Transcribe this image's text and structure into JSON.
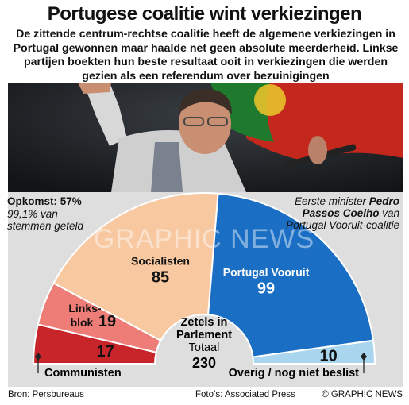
{
  "header": {
    "title": "Portugese coalitie wint verkiezingen",
    "intro": "De zittende centrum-rechtse coalitie heeft de algemene verkiezingen in Portugal gewonnen maar haalde net geen absolute meerderheid. Linkse partijen boekten hun beste resultaat ooit in verkiezingen die werden gezien als een referendum over bezuinigingen"
  },
  "watermark": "GRAPHIC NEWS",
  "turnout": {
    "label": "Opkomst:",
    "value": "57%",
    "note": "99,1% van stemmen geteld"
  },
  "pm_caption": {
    "prefix": "Eerste minister",
    "name": "Pedro Passos Coelho",
    "suffix": "van Portugal Vooruit-coalitie"
  },
  "chart_data": {
    "type": "pie",
    "variant": "parliament-semicircle",
    "title_line1": "Zetels in",
    "title_line2": "Parlement",
    "total_label": "Totaal",
    "total": 230,
    "segments": [
      {
        "name": "Communisten",
        "value": 17,
        "color": "#c8252b"
      },
      {
        "name": "Links-blok",
        "name_line1": "Links-",
        "name_line2": "blok",
        "value": 19,
        "color": "#ee7d78"
      },
      {
        "name": "Socialisten",
        "value": 85,
        "color": "#f8c8a1"
      },
      {
        "name": "Portugal Vooruit",
        "value": 99,
        "color": "#1a6fc4"
      },
      {
        "name": "Overig / nog niet beslist",
        "value": 10,
        "color": "#a9d6ee"
      }
    ]
  },
  "footer": {
    "source": "Bron: Persbureaus",
    "photos": "Foto’s: Associated Press",
    "copyright": "© GRAPHIC NEWS"
  }
}
